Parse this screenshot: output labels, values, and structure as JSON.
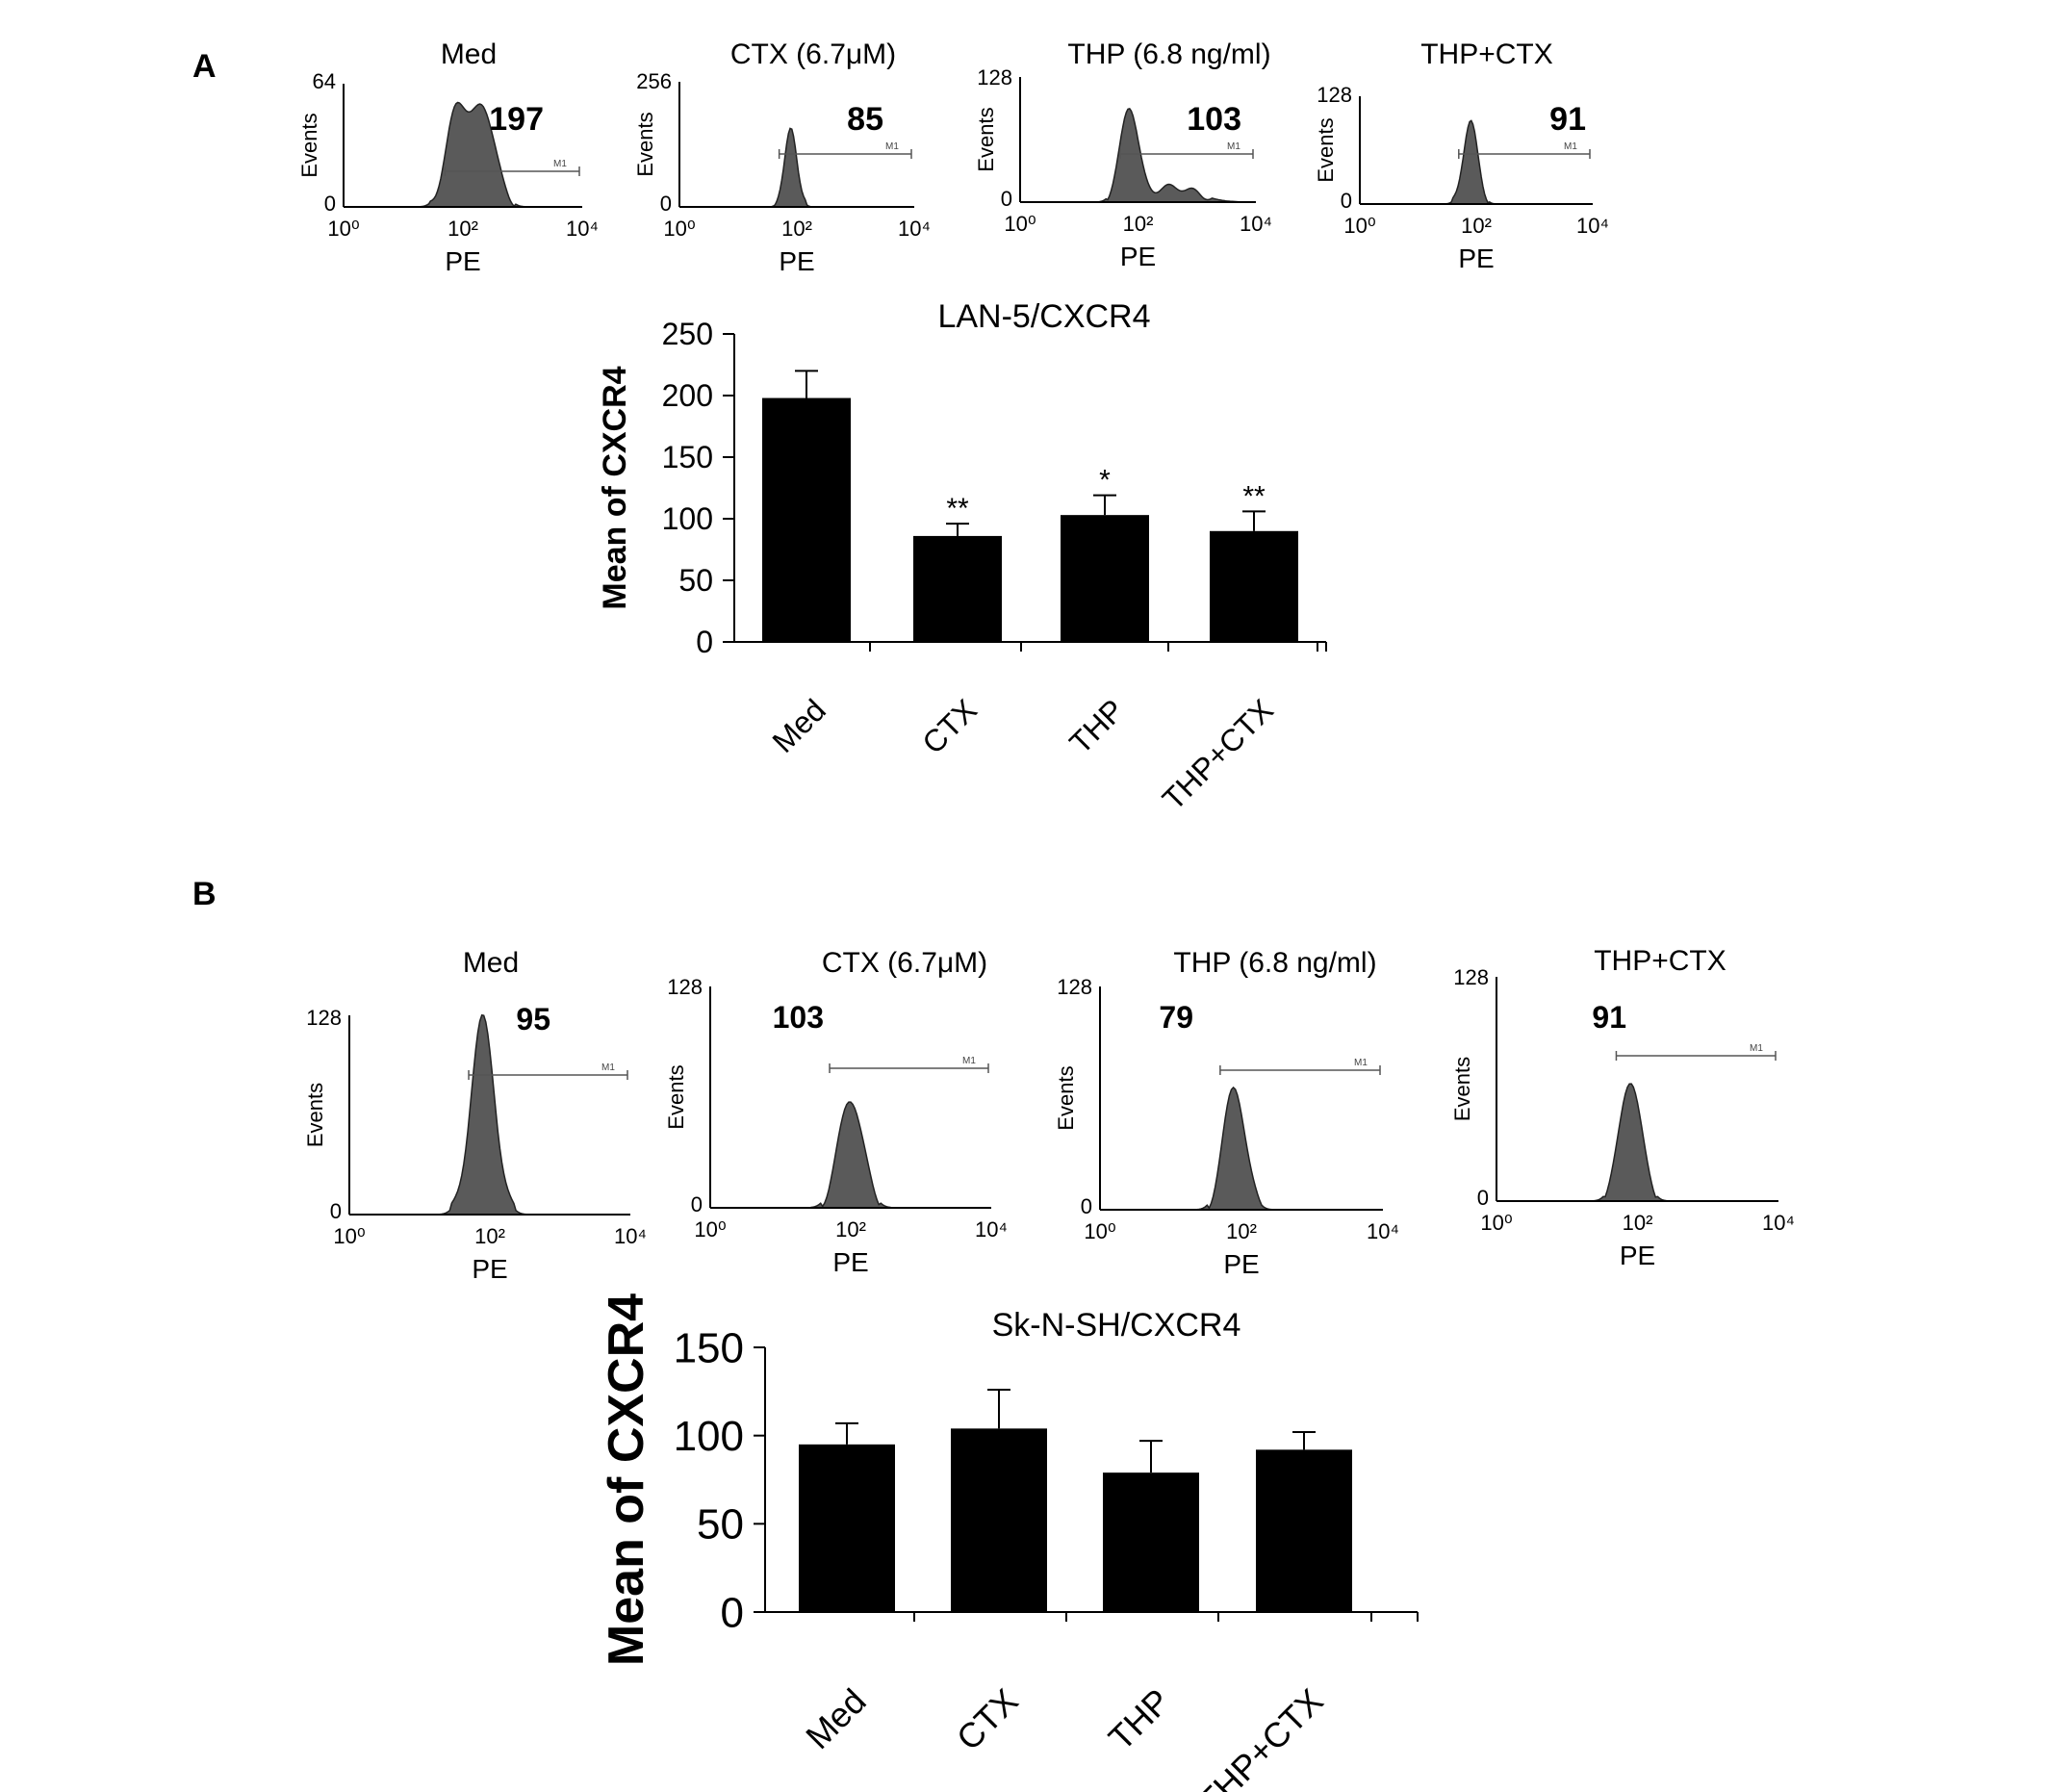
{
  "panel_labels": [
    "A",
    "B"
  ],
  "chart_data": [
    {
      "type": "histogram",
      "panel": "A",
      "title": "Med",
      "xlabel": "PE",
      "ylabel": "Events",
      "x_scale": "log",
      "x_range": [
        1,
        10000
      ],
      "x_ticks": [
        "10⁰",
        "10²",
        "10⁴"
      ],
      "y_range": [
        0,
        64
      ],
      "y_ticks": [
        "0",
        "64"
      ],
      "gate_label": "M1",
      "mean_label": "197",
      "peaks": [
        {
          "log10_center": 1.9,
          "width": 0.18,
          "height": 0.78
        },
        {
          "log10_center": 2.35,
          "width": 0.2,
          "height": 0.78
        }
      ]
    },
    {
      "type": "histogram",
      "panel": "A",
      "title": "CTX (6.7μM)",
      "xlabel": "PE",
      "ylabel": "Events",
      "x_scale": "log",
      "x_range": [
        1,
        10000
      ],
      "x_ticks": [
        "10⁰",
        "10²",
        "10⁴"
      ],
      "y_range": [
        0,
        256
      ],
      "y_ticks": [
        "0",
        "256"
      ],
      "gate_label": "M1",
      "mean_label": "85",
      "peaks": [
        {
          "log10_center": 1.9,
          "width": 0.1,
          "height": 0.65
        }
      ]
    },
    {
      "type": "histogram",
      "panel": "A",
      "title": "THP (6.8 ng/ml)",
      "xlabel": "PE",
      "ylabel": "Events",
      "x_scale": "log",
      "x_range": [
        1,
        10000
      ],
      "x_ticks": [
        "10⁰",
        "10²",
        "10⁴"
      ],
      "y_range": [
        0,
        128
      ],
      "y_ticks": [
        "0",
        "128"
      ],
      "gate_label": "M1",
      "mean_label": "103",
      "peaks": [
        {
          "log10_center": 1.85,
          "width": 0.15,
          "height": 0.75
        },
        {
          "log10_center": 2.6,
          "width": 0.4,
          "height": 0.12
        }
      ]
    },
    {
      "type": "histogram",
      "panel": "A",
      "title": "THP+CTX",
      "xlabel": "PE",
      "ylabel": "Events",
      "x_scale": "log",
      "x_range": [
        1,
        10000
      ],
      "x_ticks": [
        "10⁰",
        "10²",
        "10⁴"
      ],
      "y_range": [
        0,
        128
      ],
      "y_ticks": [
        "0",
        "128"
      ],
      "gate_label": "M1",
      "mean_label": "91",
      "peaks": [
        {
          "log10_center": 1.9,
          "width": 0.12,
          "height": 0.78
        }
      ]
    },
    {
      "type": "bar",
      "panel": "A",
      "title": "LAN-5/CXCR4",
      "ylabel": "Mean of CXCR4",
      "xlabel": "",
      "categories": [
        "Med",
        "CTX",
        "THP",
        "THP+CTX"
      ],
      "values": [
        198,
        86,
        103,
        90
      ],
      "errors": [
        22,
        10,
        16,
        16
      ],
      "significance": [
        "",
        "**",
        "*",
        "**"
      ],
      "ylim": [
        0,
        250
      ],
      "yticks": [
        0,
        50,
        100,
        150,
        200,
        250
      ],
      "bar_color": "#000000"
    },
    {
      "type": "histogram",
      "panel": "B",
      "title": "Med",
      "xlabel": "PE",
      "ylabel": "Events",
      "x_scale": "log",
      "x_range": [
        1,
        10000
      ],
      "x_ticks": [
        "10⁰",
        "10²",
        "10⁴"
      ],
      "y_range": [
        0,
        128
      ],
      "y_ticks": [
        "0",
        "128"
      ],
      "gate_label": "M1",
      "mean_label": "95",
      "peaks": [
        {
          "log10_center": 1.9,
          "width": 0.17,
          "height": 0.98
        }
      ]
    },
    {
      "type": "histogram",
      "panel": "B",
      "title": "CTX (6.7μM)",
      "xlabel": "PE",
      "ylabel": "Events",
      "x_scale": "log",
      "x_range": [
        1,
        10000
      ],
      "x_ticks": [
        "10⁰",
        "10²",
        "10⁴"
      ],
      "y_range": [
        0,
        128
      ],
      "y_ticks": [
        "0",
        "128"
      ],
      "gate_label": "M1",
      "mean_label": "103",
      "peaks": [
        {
          "log10_center": 2.0,
          "width": 0.17,
          "height": 0.5
        }
      ]
    },
    {
      "type": "histogram",
      "panel": "B",
      "title": "THP (6.8 ng/ml)",
      "xlabel": "PE",
      "ylabel": "Events",
      "x_scale": "log",
      "x_range": [
        1,
        10000
      ],
      "x_ticks": [
        "10⁰",
        "10²",
        "10⁴"
      ],
      "y_range": [
        0,
        128
      ],
      "y_ticks": [
        "0",
        "128"
      ],
      "gate_label": "M1",
      "mean_label": "79",
      "peaks": [
        {
          "log10_center": 1.9,
          "width": 0.15,
          "height": 0.56
        }
      ]
    },
    {
      "type": "histogram",
      "panel": "B",
      "title": "THP+CTX",
      "xlabel": "PE",
      "ylabel": "Events",
      "x_scale": "log",
      "x_range": [
        1,
        10000
      ],
      "x_ticks": [
        "10⁰",
        "10²",
        "10⁴"
      ],
      "y_range": [
        0,
        128
      ],
      "y_ticks": [
        "0",
        "128"
      ],
      "gate_label": "M1",
      "mean_label": "91",
      "peaks": [
        {
          "log10_center": 1.9,
          "width": 0.15,
          "height": 0.55
        }
      ]
    },
    {
      "type": "bar",
      "panel": "B",
      "title": "Sk-N-SH/CXCR4",
      "ylabel": "Mean of CXCR4",
      "xlabel": "",
      "categories": [
        "Med",
        "CTX",
        "THP",
        "THP+CTX"
      ],
      "values": [
        95,
        104,
        79,
        92
      ],
      "errors": [
        12,
        22,
        18,
        10
      ],
      "significance": [
        "",
        "",
        "",
        ""
      ],
      "ylim": [
        0,
        150
      ],
      "yticks": [
        0,
        50,
        100,
        150
      ],
      "bar_color": "#000000"
    }
  ]
}
